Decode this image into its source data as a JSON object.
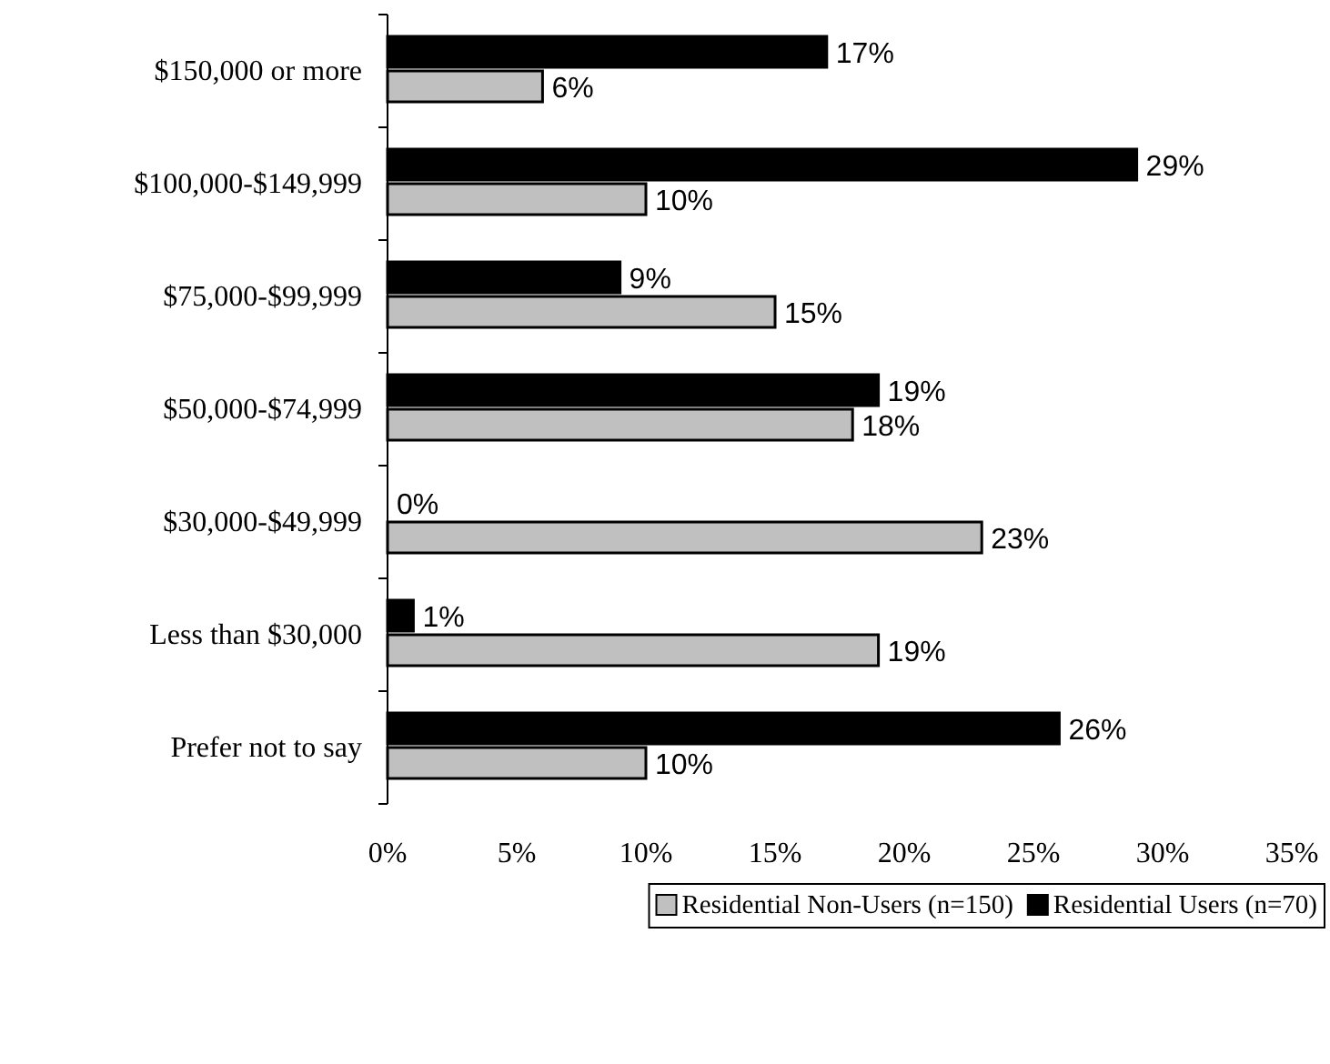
{
  "chart_data": {
    "type": "bar",
    "orientation": "horizontal",
    "categories": [
      "$150,000 or more",
      "$100,000-$149,999",
      "$75,000-$99,999",
      "$50,000-$74,999",
      "$30,000-$49,999",
      "Less than $30,000",
      "Prefer not to say"
    ],
    "series": [
      {
        "name": "Residential Non-Users (n=150)",
        "color": "#c0c0c0",
        "values": [
          6,
          10,
          15,
          18,
          23,
          19,
          10
        ],
        "value_labels": [
          "6%",
          "10%",
          "15%",
          "18%",
          "23%",
          "19%",
          "10%"
        ]
      },
      {
        "name": "Residential Users (n=70)",
        "color": "#000000",
        "values": [
          17,
          29,
          9,
          19,
          0,
          1,
          26
        ],
        "value_labels": [
          "17%",
          "29%",
          "9%",
          "19%",
          "0%",
          "1%",
          "26%"
        ]
      }
    ],
    "xlim": [
      0,
      35
    ],
    "xticks": [
      {
        "value": 0,
        "label": "0%"
      },
      {
        "value": 5,
        "label": "5%"
      },
      {
        "value": 10,
        "label": "10%"
      },
      {
        "value": 15,
        "label": "15%"
      },
      {
        "value": 20,
        "label": "20%"
      },
      {
        "value": 25,
        "label": "25%"
      },
      {
        "value": 30,
        "label": "30%"
      },
      {
        "value": 35,
        "label": "35%"
      }
    ],
    "grid": false,
    "legend": "bottom"
  }
}
